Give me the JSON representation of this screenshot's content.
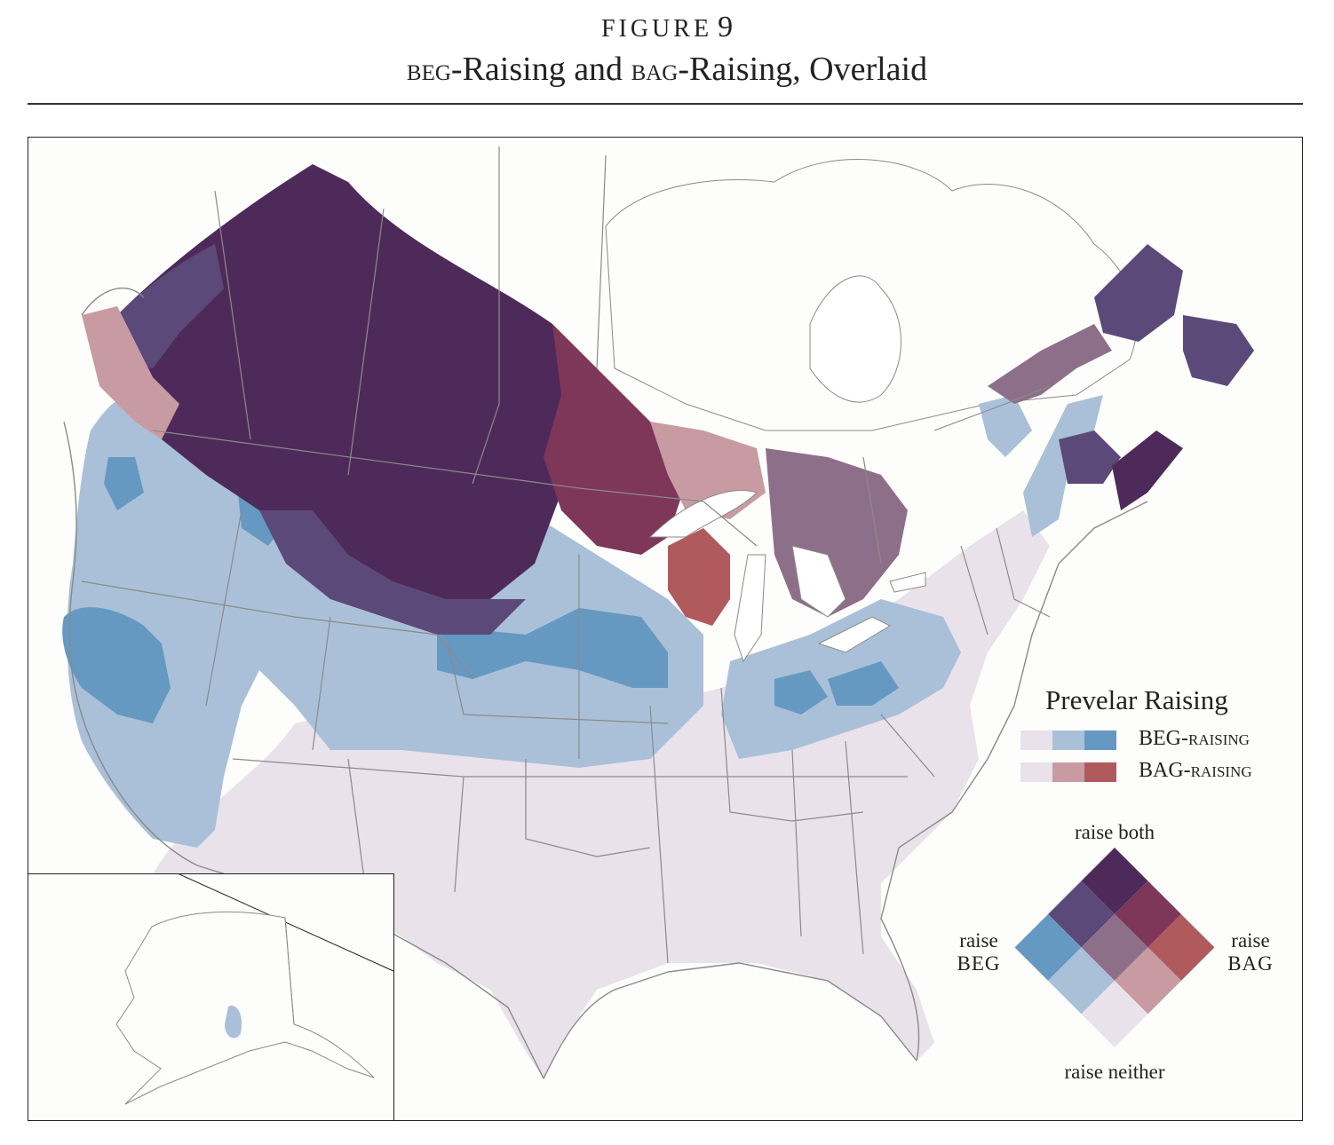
{
  "figure": {
    "label": "FIGURE",
    "number": "9",
    "title_beg": "BEG",
    "title_part1": "-Raising and ",
    "title_bag": "BAG",
    "title_part2": "-Raising, Overlaid"
  },
  "legend": {
    "title": "Prevelar Raising",
    "beg_label": "BEG-raising",
    "bag_label": "BAG-raising",
    "beg_colors": [
      "#e9e2ea",
      "#a9c0d8",
      "#6599c2"
    ],
    "bag_colors": [
      "#e9e2ea",
      "#c89ba3",
      "#b05a5e"
    ]
  },
  "bivariate_key": {
    "raise_both": "raise both",
    "raise_neither": "raise neither",
    "raise_word": "raise",
    "beg": "BEG",
    "bag": "BAG",
    "grid_colors": [
      [
        "#e9e2ea",
        "#c89ba3",
        "#b05a5e"
      ],
      [
        "#a9c0d8",
        "#8e6f8a",
        "#7e3758"
      ],
      [
        "#6599c2",
        "#5b4a79",
        "#4e2a5a"
      ]
    ]
  },
  "map_colors": {
    "none": "#e9e2ea",
    "beg_mid": "#a9c0d8",
    "beg_high": "#6599c2",
    "bag_mid": "#c89ba3",
    "bag_high": "#b05a5e",
    "mixed": "#8e6f8a",
    "both_mid_beg": "#5b4a79",
    "both_mid_bag": "#7e3758",
    "both_high": "#4e2a5a",
    "land": "#fdfdfb",
    "water": "#ffffff",
    "border": "#8a8a8a"
  }
}
